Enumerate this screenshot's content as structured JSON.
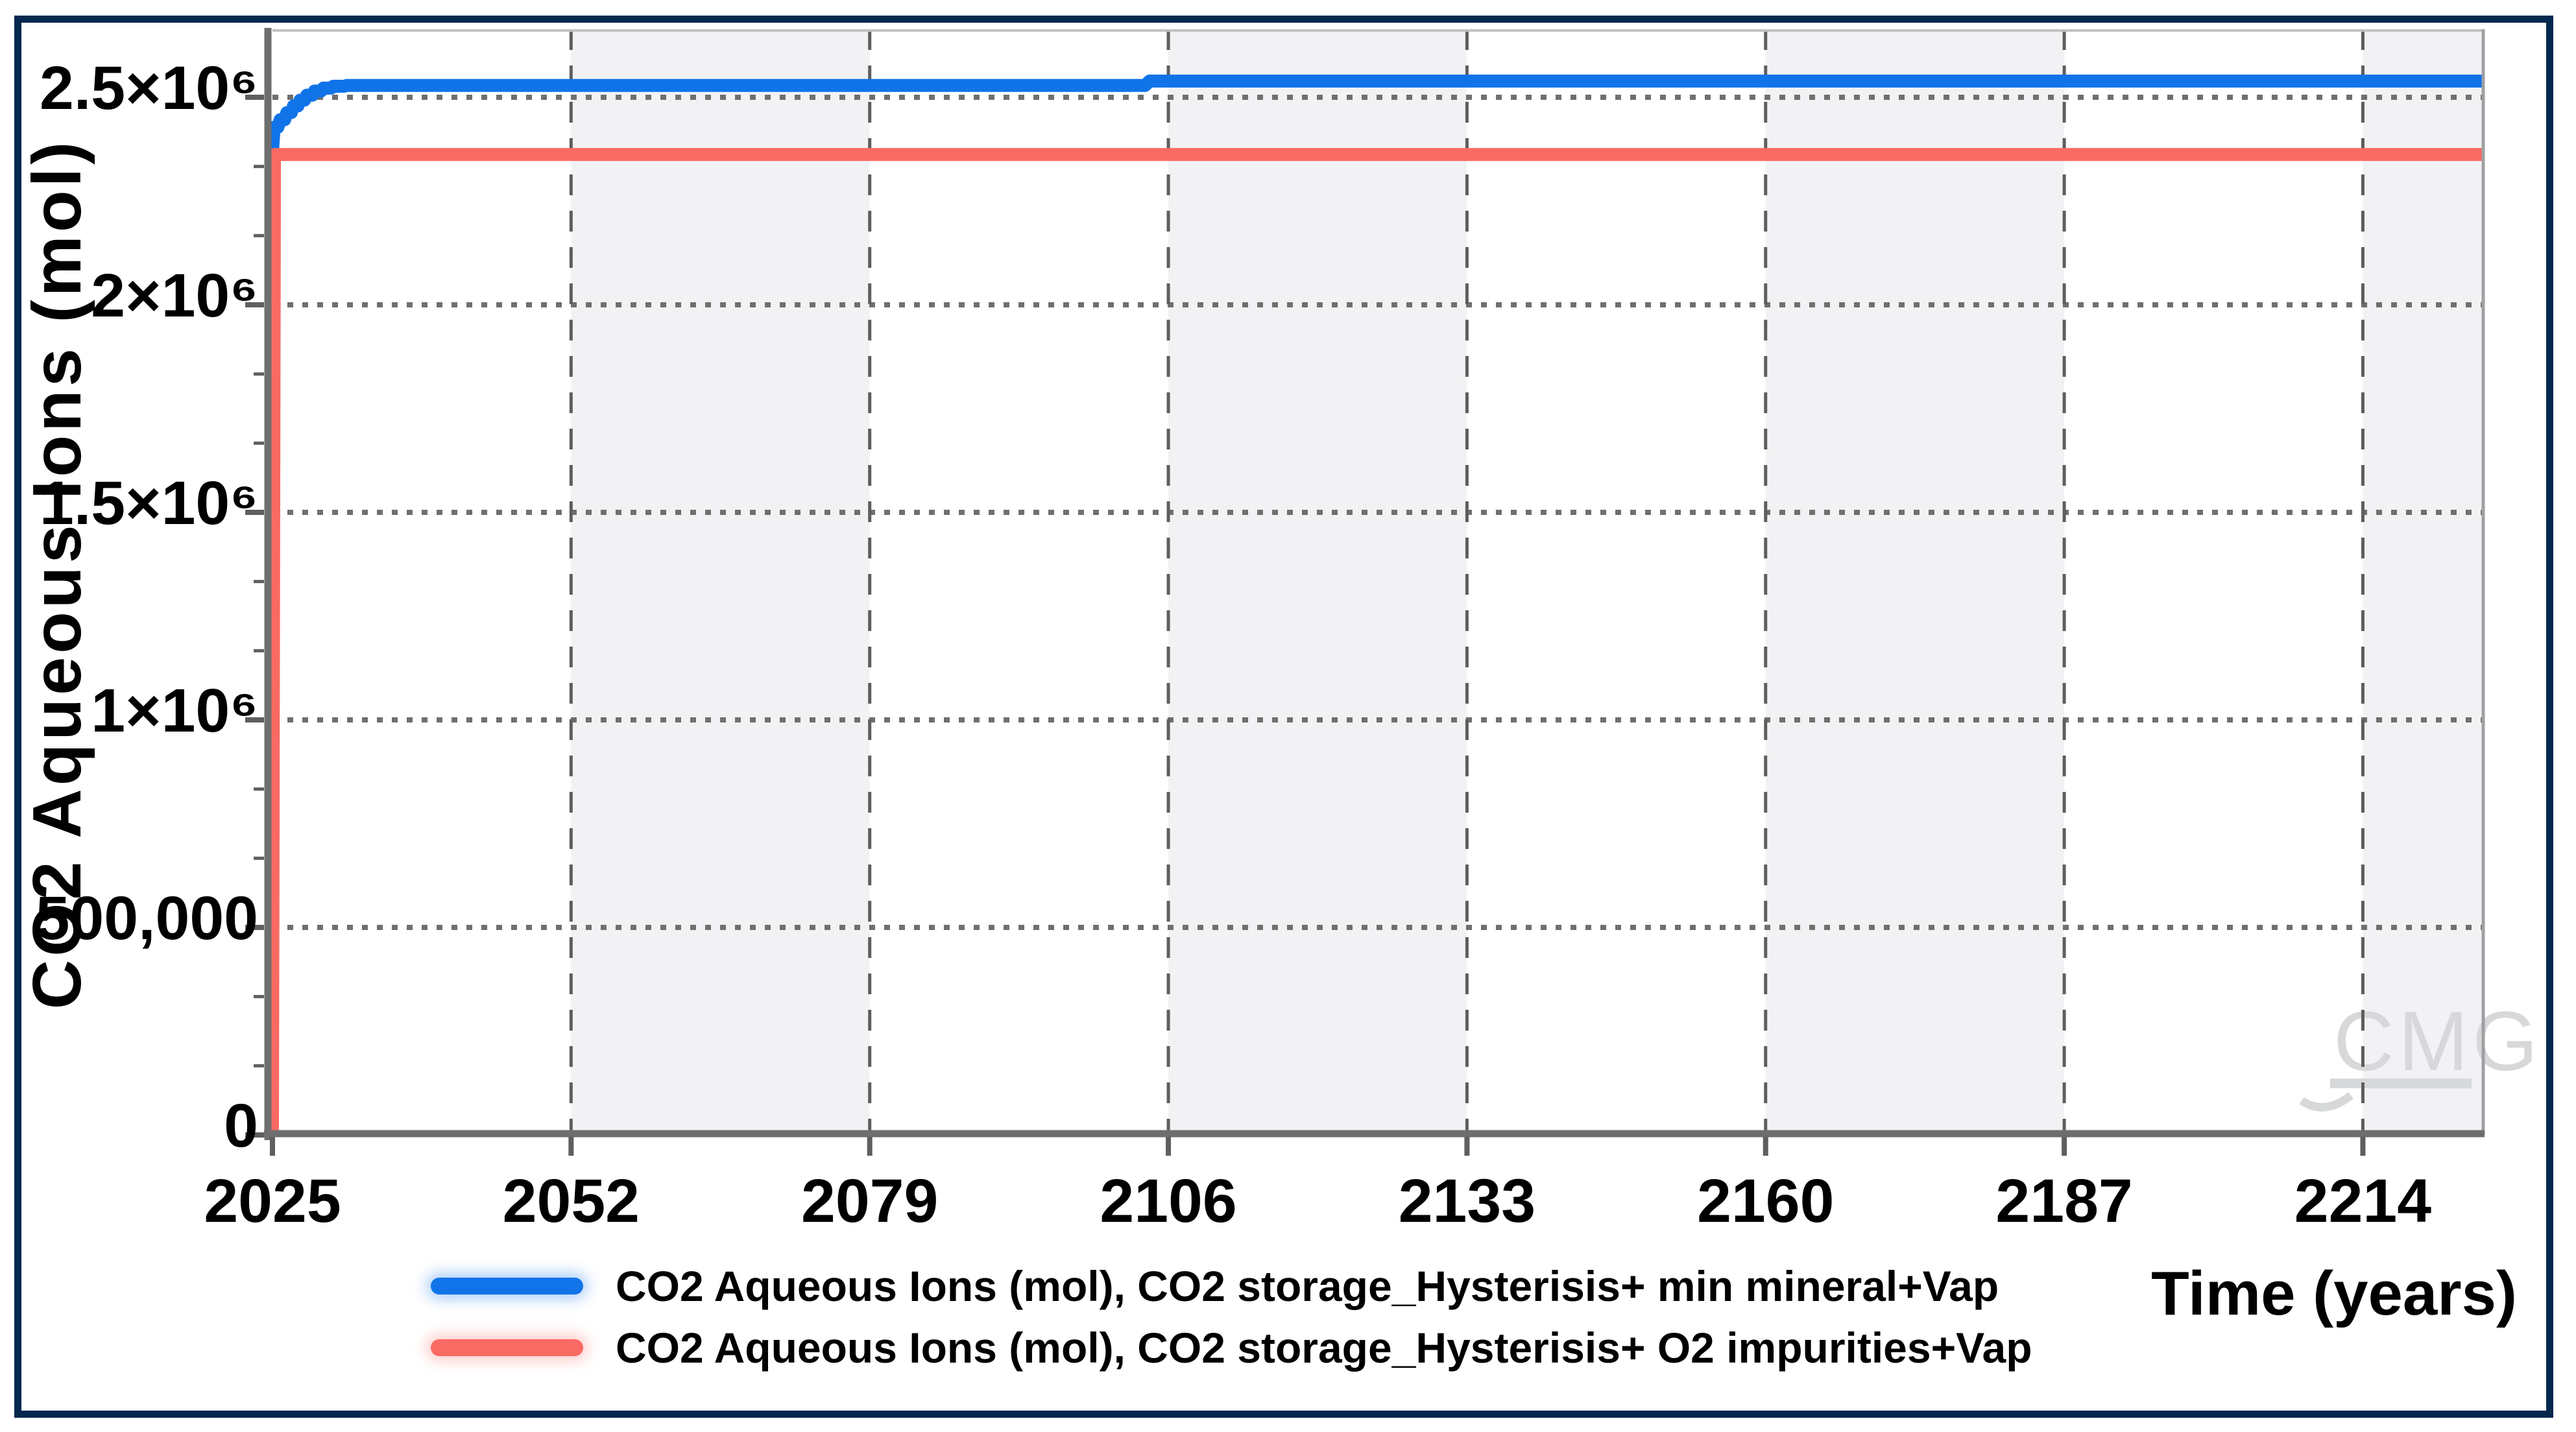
{
  "chart_data": {
    "type": "line",
    "title": "",
    "xlabel": "Time (years)",
    "ylabel": "CO2 Aqueous Ions (mol)",
    "x_range": [
      2025,
      2225
    ],
    "y_range": [
      0,
      2664063
    ],
    "x_ticks": [
      2025,
      2052,
      2079,
      2106,
      2133,
      2160,
      2187,
      2214
    ],
    "y_ticks": [
      {
        "value": 0,
        "label": "0"
      },
      {
        "value": 500000,
        "label": "500,000"
      },
      {
        "value": 1000000,
        "label": "1×10⁶"
      },
      {
        "value": 1500000,
        "label": "1.5×10⁶"
      },
      {
        "value": 2000000,
        "label": "2×10⁶"
      },
      {
        "value": 2500000,
        "label": "2.5×10⁶"
      }
    ],
    "y_minor_divisions": 3,
    "grid": {
      "horizontal": "dotted",
      "vertical": "dashed",
      "alternating_bands": true
    },
    "legend_position": "bottom",
    "series": [
      {
        "name": "CO2 Aqueous Ions (mol), CO2 storage_Hysterisis+ min mineral+Vap",
        "color": "#1074e8",
        "points": [
          [
            2025,
            2368000
          ],
          [
            2025.15,
            2428000
          ],
          [
            2025.5,
            2428000
          ],
          [
            2025.7,
            2446000
          ],
          [
            2026.1,
            2446000
          ],
          [
            2026.3,
            2463000
          ],
          [
            2026.7,
            2463000
          ],
          [
            2026.9,
            2479000
          ],
          [
            2027.3,
            2479000
          ],
          [
            2027.5,
            2493000
          ],
          [
            2027.9,
            2493000
          ],
          [
            2028.1,
            2505000
          ],
          [
            2028.6,
            2505000
          ],
          [
            2028.8,
            2515000
          ],
          [
            2029.4,
            2515000
          ],
          [
            2029.6,
            2522000
          ],
          [
            2030.3,
            2522000
          ],
          [
            2030.5,
            2526500
          ],
          [
            2031.5,
            2526500
          ],
          [
            2031.7,
            2528500
          ],
          [
            2103.9,
            2528500
          ],
          [
            2104.3,
            2539000
          ],
          [
            2225,
            2539000
          ]
        ]
      },
      {
        "name": "CO2 Aqueous Ions (mol), CO2 storage_Hysterisis+ O2 impurities+Vap",
        "color": "#f96a63",
        "points": [
          [
            2025,
            0
          ],
          [
            2025.18,
            2362000
          ],
          [
            2225,
            2362000
          ]
        ]
      }
    ]
  },
  "watermark": {
    "text": "CMG"
  },
  "colors": {
    "frame": "#04284e",
    "band": "#f2f2f4",
    "grid_dot": "#6f6f6f",
    "grid_dash": "#5e5e5e",
    "axis": "#6e6e6e",
    "tick": "#5f5f5f",
    "plot_border_top": "#c2c2c5",
    "plot_border_right": "#9fa0a3",
    "watermark": "#d6d8da",
    "blue_series": "#1074e8",
    "red_series": "#f96a63"
  }
}
